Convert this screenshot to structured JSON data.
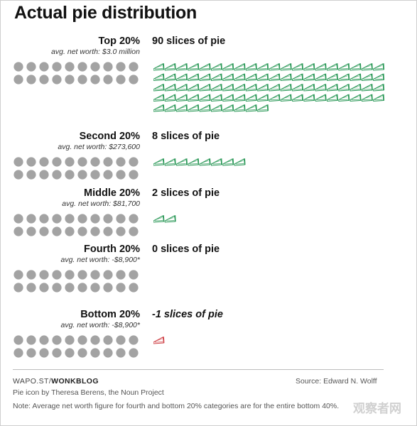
{
  "title": "Actual pie distribution",
  "colors": {
    "dot": "#a3a3a3",
    "pie": "#2e9a5a",
    "pie_negative": "#d0454a"
  },
  "footer": {
    "source_left_prefix": "WAPO.ST/",
    "source_left_brand": "WONKBLOG",
    "source": "Source: Edward N. Wolff",
    "credit": "Pie icon by Theresa Berens, the Noun Project",
    "note": "Note: Average net worth figure for fourth and bottom 20% categories are for the entire bottom 40%."
  },
  "watermark": "观察者网",
  "chart_data": {
    "type": "pictograph",
    "title": "Actual pie distribution",
    "unit": "slices of pie",
    "population_dots_per_group": 20,
    "groups": [
      {
        "name": "Top 20%",
        "avg_net_worth": "avg. net worth: $3.0 million",
        "slices": 90,
        "slices_label": "90 slices of pie"
      },
      {
        "name": "Second 20%",
        "avg_net_worth": "avg. net worth: $273,600",
        "slices": 8,
        "slices_label": "8 slices of pie"
      },
      {
        "name": "Middle 20%",
        "avg_net_worth": "avg. net worth: $81,700",
        "slices": 2,
        "slices_label": "2 slices of pie"
      },
      {
        "name": "Fourth 20%",
        "avg_net_worth": "avg. net worth: -$8,900*",
        "slices": 0,
        "slices_label": "0 slices of pie"
      },
      {
        "name": "Bottom 20%",
        "avg_net_worth": "avg. net worth: -$8,900*",
        "slices": -1,
        "slices_label": "-1 slices of pie"
      }
    ]
  }
}
